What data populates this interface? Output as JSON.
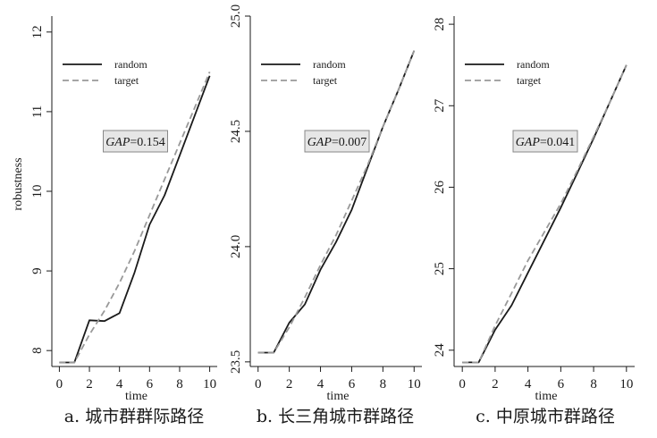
{
  "colors": {
    "random": "#1a1a1a",
    "target": "#999999",
    "gap_box_fill": "#e6e6e6",
    "gap_box_stroke": "#888888"
  },
  "chart_data": [
    {
      "type": "line",
      "caption": "a. 城市群群际路径",
      "xlabel": "time",
      "ylabel": "robustness",
      "xlim": [
        -0.5,
        10.5
      ],
      "ylim": [
        7.8,
        12.2
      ],
      "xticks": [
        0,
        2,
        4,
        6,
        8,
        10
      ],
      "yticks": [
        8,
        9,
        10,
        11,
        12
      ],
      "ytick_labels": [
        "8",
        "9",
        "10",
        "11",
        "12"
      ],
      "legend": {
        "position": "top-left",
        "entries": [
          "random",
          "target"
        ]
      },
      "annotation": {
        "label": "GAP",
        "value": "=0.154"
      },
      "series": [
        {
          "name": "random",
          "style": "solid",
          "x": [
            0,
            1,
            2,
            3,
            4,
            5,
            6,
            7,
            8,
            9,
            10
          ],
          "y": [
            7.85,
            7.85,
            8.38,
            8.37,
            8.47,
            8.98,
            9.58,
            9.95,
            10.45,
            10.95,
            11.45
          ]
        },
        {
          "name": "target",
          "style": "dashed",
          "x": [
            0,
            1,
            2,
            3,
            4,
            5,
            6,
            7,
            8,
            9,
            10
          ],
          "y": [
            7.85,
            7.85,
            8.2,
            8.5,
            8.85,
            9.25,
            9.7,
            10.15,
            10.6,
            11.05,
            11.5
          ]
        }
      ]
    },
    {
      "type": "line",
      "caption": "b. 长三角城市群路径",
      "xlabel": "time",
      "ylabel": "",
      "xlim": [
        -0.5,
        10.5
      ],
      "ylim": [
        23.48,
        25.0
      ],
      "xticks": [
        0,
        2,
        4,
        6,
        8,
        10
      ],
      "yticks": [
        23.5,
        24.0,
        24.5,
        25.0
      ],
      "ytick_labels": [
        "23.5",
        "24.0",
        "24.5",
        "25.0"
      ],
      "legend": {
        "position": "top-left",
        "entries": [
          "random",
          "target"
        ]
      },
      "annotation": {
        "label": "GAP",
        "value": "=0.007"
      },
      "series": [
        {
          "name": "random",
          "style": "solid",
          "x": [
            0,
            1,
            2,
            3,
            4,
            5,
            6,
            7,
            8,
            9,
            10
          ],
          "y": [
            23.54,
            23.54,
            23.67,
            23.75,
            23.9,
            24.02,
            24.16,
            24.34,
            24.52,
            24.68,
            24.85
          ]
        },
        {
          "name": "target",
          "style": "dashed",
          "x": [
            0,
            1,
            2,
            3,
            4,
            5,
            6,
            7,
            8,
            9,
            10
          ],
          "y": [
            23.54,
            23.54,
            23.65,
            23.78,
            23.92,
            24.05,
            24.2,
            24.35,
            24.52,
            24.68,
            24.85
          ]
        }
      ]
    },
    {
      "type": "line",
      "caption": "c. 中原城市群路径",
      "xlabel": "time",
      "ylabel": "",
      "xlim": [
        -0.5,
        10.5
      ],
      "ylim": [
        23.8,
        28.1
      ],
      "xticks": [
        0,
        2,
        4,
        6,
        8,
        10
      ],
      "yticks": [
        24,
        25,
        26,
        27,
        28
      ],
      "ytick_labels": [
        "24",
        "25",
        "26",
        "27",
        "28"
      ],
      "legend": {
        "position": "top-left",
        "entries": [
          "random",
          "target"
        ]
      },
      "annotation": {
        "label": "GAP",
        "value": "=0.041"
      },
      "series": [
        {
          "name": "random",
          "style": "solid",
          "x": [
            0,
            1,
            2,
            3,
            4,
            5,
            6,
            7,
            8,
            9,
            10
          ],
          "y": [
            23.85,
            23.85,
            24.25,
            24.55,
            24.95,
            25.35,
            25.75,
            26.17,
            26.6,
            27.05,
            27.5
          ]
        },
        {
          "name": "target",
          "style": "dashed",
          "x": [
            0,
            1,
            2,
            3,
            4,
            5,
            6,
            7,
            8,
            9,
            10
          ],
          "y": [
            23.85,
            23.85,
            24.3,
            24.7,
            25.1,
            25.45,
            25.8,
            26.2,
            26.62,
            27.05,
            27.5
          ]
        }
      ]
    }
  ]
}
